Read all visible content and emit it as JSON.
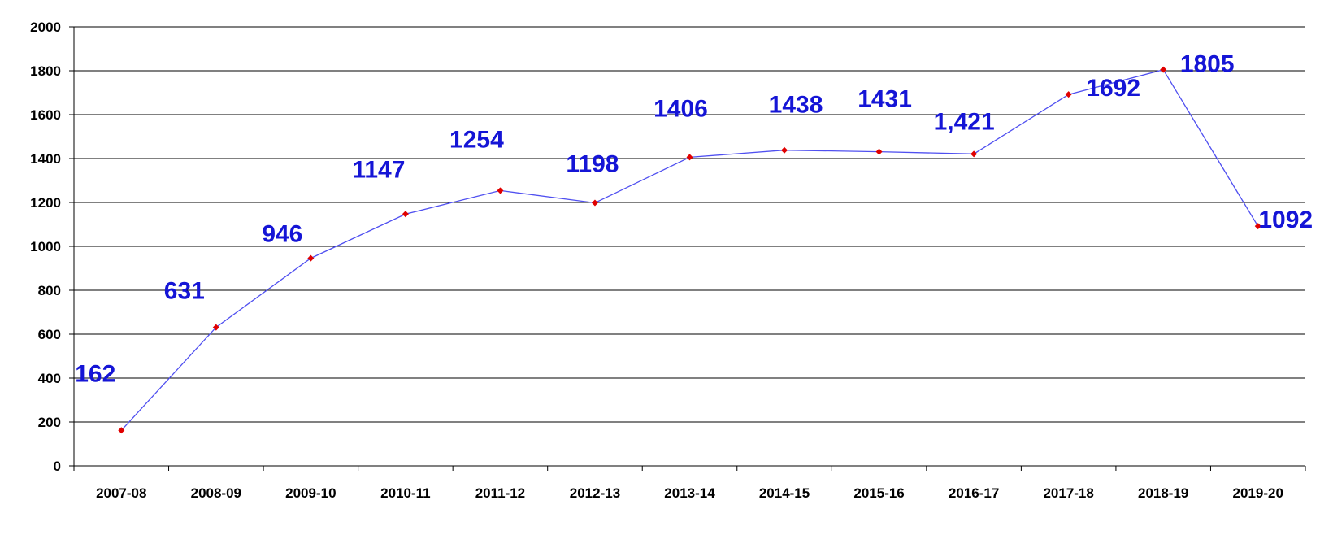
{
  "chart_data": {
    "type": "line",
    "title": "",
    "xlabel": "",
    "ylabel": "",
    "categories": [
      "2007-08",
      "2008-09",
      "2009-10",
      "2010-11",
      "2011-12",
      "2012-13",
      "2013-14",
      "2014-15",
      "2015-16",
      "2016-17",
      "2017-18",
      "2018-19",
      "2019-20"
    ],
    "series": [
      {
        "values": [
          162,
          631,
          946,
          1147,
          1254,
          1198,
          1406,
          1438,
          1431,
          1421,
          1692,
          1805,
          1092
        ],
        "data_labels": [
          "162",
          "631",
          "946",
          "1147",
          "1254",
          "1198",
          "1406",
          "1438",
          "1431",
          "1,421",
          "1692",
          "1805",
          "1092"
        ]
      }
    ],
    "ylim": [
      0,
      2000
    ],
    "yticks": [
      0,
      200,
      400,
      600,
      800,
      1000,
      1200,
      1400,
      1600,
      1800,
      2000
    ],
    "grid": true,
    "legend": "none",
    "colors": {
      "line": "#5050f0",
      "marker": "#e00000",
      "data_label": "#1515d6",
      "grid": "#000000"
    }
  }
}
